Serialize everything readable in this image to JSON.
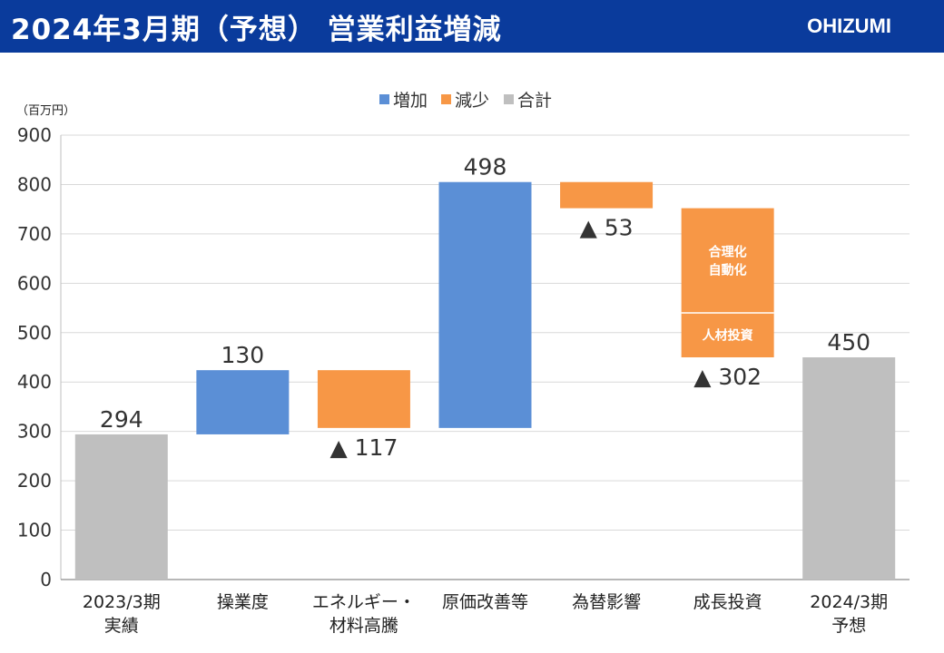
{
  "header": {
    "title": "2024年3月期（予想） 営業利益増減",
    "logo": "OHIZUMI"
  },
  "unit_label": "（百万円）",
  "colors": {
    "increase": "#5b8fd6",
    "decrease": "#f79746",
    "total": "#bfbfbf",
    "header_bg": "#0a3b9c"
  },
  "chart_data": {
    "type": "bar",
    "subtype": "waterfall",
    "ylim": [
      0,
      900
    ],
    "yticks": [
      0,
      100,
      200,
      300,
      400,
      500,
      600,
      700,
      800,
      900
    ],
    "grid": true,
    "legend": {
      "position": "top-center",
      "items": [
        {
          "label": "増加",
          "kind": "increase"
        },
        {
          "label": "減少",
          "kind": "decrease"
        },
        {
          "label": "合計",
          "kind": "total"
        }
      ]
    },
    "bars": [
      {
        "category": [
          "2023/3期",
          "実績"
        ],
        "kind": "total",
        "base": 0,
        "top": 294,
        "label": "294"
      },
      {
        "category": [
          "操業度"
        ],
        "kind": "increase",
        "base": 294,
        "top": 424,
        "label": "130"
      },
      {
        "category": [
          "エネルギー・",
          "材料高騰"
        ],
        "kind": "decrease",
        "base": 307,
        "top": 424,
        "label": "▲ 117"
      },
      {
        "category": [
          "原価改善等"
        ],
        "kind": "increase",
        "base": 307,
        "top": 805,
        "label": "498"
      },
      {
        "category": [
          "為替影響"
        ],
        "kind": "decrease",
        "base": 752,
        "top": 805,
        "label": "▲ 53"
      },
      {
        "category": [
          "成長投資"
        ],
        "kind": "decrease",
        "base": 450,
        "top": 752,
        "label": "▲ 302",
        "segments": [
          {
            "base": 540,
            "top": 752,
            "text": [
              "合理化",
              "自動化"
            ]
          },
          {
            "base": 450,
            "top": 540,
            "text": [
              "人材投資"
            ]
          }
        ]
      },
      {
        "category": [
          "2024/3期",
          "予想"
        ],
        "kind": "total",
        "base": 0,
        "top": 450,
        "label": "450"
      }
    ]
  }
}
